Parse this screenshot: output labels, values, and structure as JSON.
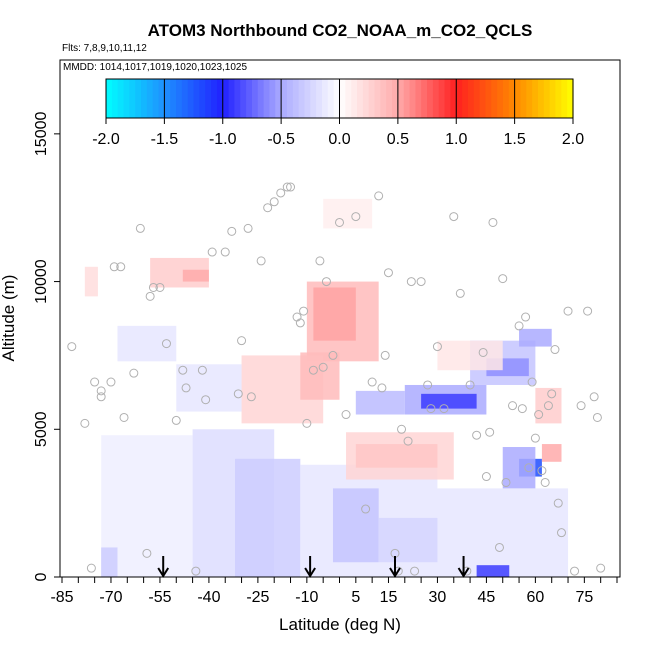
{
  "chart_data": {
    "type": "heatmap",
    "title": "ATOM3 Northbound CO2_NOAA_m_CO2_QCLS",
    "subtitle_flights": "Flts: 7,8,9,10,11,12",
    "subtitle_dates": "MMDD: 1014,1017,1019,1020,1023,1025",
    "xlabel": "Latitude (deg N)",
    "ylabel": "Altitude (m)",
    "xlim": [
      -85,
      85
    ],
    "ylim": [
      0,
      17500
    ],
    "x_tick_labels": [
      "-85",
      "-70",
      "-55",
      "-40",
      "-25",
      "-10",
      "5",
      "15",
      "30",
      "45",
      "60",
      "75"
    ],
    "x_tick_values": [
      -85,
      -70,
      -55,
      -40,
      -25,
      -10,
      5,
      15,
      30,
      45,
      60,
      75
    ],
    "y_tick_labels": [
      "0",
      "5000",
      "10000",
      "15000"
    ],
    "y_tick_values": [
      0,
      5000,
      10000,
      15000
    ],
    "colorbar": {
      "range": [
        -2.0,
        2.0
      ],
      "tick_labels": [
        "-2.0",
        "-1.5",
        "-1.0",
        "-0.5",
        "0.0",
        "0.5",
        "1.0",
        "1.5",
        "2.0"
      ],
      "tick_values": [
        -2.0,
        -1.5,
        -1.0,
        -0.5,
        0.0,
        0.5,
        1.0,
        1.5,
        2.0
      ],
      "stops": [
        {
          "v": -2.0,
          "c": "#00ffff"
        },
        {
          "v": -1.5,
          "c": "#1e90ff"
        },
        {
          "v": -1.0,
          "c": "#2020ff"
        },
        {
          "v": -0.5,
          "c": "#aaaaff"
        },
        {
          "v": 0.0,
          "c": "#ffffff"
        },
        {
          "v": 0.5,
          "c": "#ffaaaa"
        },
        {
          "v": 1.0,
          "c": "#ff2020"
        },
        {
          "v": 1.5,
          "c": "#ff8800"
        },
        {
          "v": 2.0,
          "c": "#ffff00"
        }
      ]
    },
    "cells": [
      {
        "x": [
          -78,
          -74
        ],
        "y": [
          9500,
          10500
        ],
        "v": 0.2
      },
      {
        "x": [
          -73,
          -45
        ],
        "y": [
          0,
          4800
        ],
        "v": -0.1
      },
      {
        "x": [
          -73,
          -68
        ],
        "y": [
          0,
          1000
        ],
        "v": -0.3
      },
      {
        "x": [
          -45,
          -20
        ],
        "y": [
          0,
          5000
        ],
        "v": -0.2
      },
      {
        "x": [
          -32,
          -12
        ],
        "y": [
          0,
          4000
        ],
        "v": -0.3
      },
      {
        "x": [
          -12,
          30
        ],
        "y": [
          0,
          3800
        ],
        "v": -0.15
      },
      {
        "x": [
          -2,
          12
        ],
        "y": [
          500,
          3000
        ],
        "v": -0.35
      },
      {
        "x": [
          12,
          30
        ],
        "y": [
          500,
          2000
        ],
        "v": -0.25
      },
      {
        "x": [
          30,
          70
        ],
        "y": [
          0,
          3000
        ],
        "v": -0.15
      },
      {
        "x": [
          42,
          52
        ],
        "y": [
          0,
          400
        ],
        "v": -0.9
      },
      {
        "x": [
          55,
          62
        ],
        "y": [
          3400,
          4000
        ],
        "v": -1.2
      },
      {
        "x": [
          50,
          60
        ],
        "y": [
          3000,
          4400
        ],
        "v": -0.5
      },
      {
        "x": [
          62,
          68
        ],
        "y": [
          3900,
          4500
        ],
        "v": 0.5
      },
      {
        "x": [
          5,
          30
        ],
        "y": [
          3700,
          4500
        ],
        "v": 0.7
      },
      {
        "x": [
          2,
          35
        ],
        "y": [
          3300,
          4900
        ],
        "v": 0.25
      },
      {
        "x": [
          -8,
          5
        ],
        "y": [
          8000,
          9800
        ],
        "v": 1.0
      },
      {
        "x": [
          -10,
          12
        ],
        "y": [
          7300,
          10000
        ],
        "v": 0.4
      },
      {
        "x": [
          -30,
          -5
        ],
        "y": [
          5200,
          7500
        ],
        "v": 0.25
      },
      {
        "x": [
          -12,
          0
        ],
        "y": [
          6000,
          7600
        ],
        "v": 0.4
      },
      {
        "x": [
          -50,
          -30
        ],
        "y": [
          5600,
          7200
        ],
        "v": -0.15
      },
      {
        "x": [
          -68,
          -50
        ],
        "y": [
          7300,
          8500
        ],
        "v": -0.15
      },
      {
        "x": [
          -58,
          -40
        ],
        "y": [
          9800,
          10800
        ],
        "v": 0.3
      },
      {
        "x": [
          -48,
          -40
        ],
        "y": [
          10000,
          10400
        ],
        "v": 0.5
      },
      {
        "x": [
          5,
          20
        ],
        "y": [
          5500,
          6300
        ],
        "v": -0.4
      },
      {
        "x": [
          20,
          45
        ],
        "y": [
          5500,
          6500
        ],
        "v": -0.5
      },
      {
        "x": [
          25,
          42
        ],
        "y": [
          5700,
          6200
        ],
        "v": -0.9
      },
      {
        "x": [
          40,
          60
        ],
        "y": [
          6500,
          8000
        ],
        "v": -0.35
      },
      {
        "x": [
          45,
          58
        ],
        "y": [
          6800,
          7400
        ],
        "v": -0.6
      },
      {
        "x": [
          55,
          65
        ],
        "y": [
          7800,
          8400
        ],
        "v": -0.5
      },
      {
        "x": [
          -5,
          10
        ],
        "y": [
          11800,
          12800
        ],
        "v": 0.1
      },
      {
        "x": [
          30,
          50
        ],
        "y": [
          7000,
          8000
        ],
        "v": 0.15
      },
      {
        "x": [
          60,
          68
        ],
        "y": [
          5200,
          6400
        ],
        "v": 0.3
      }
    ],
    "points": [
      [
        -82,
        7800
      ],
      [
        -78,
        5200
      ],
      [
        -76,
        300
      ],
      [
        -75,
        6600
      ],
      [
        -73,
        6300
      ],
      [
        -73,
        6100
      ],
      [
        -70,
        6600
      ],
      [
        -69,
        10500
      ],
      [
        -67,
        10500
      ],
      [
        -66,
        5400
      ],
      [
        -63,
        6900
      ],
      [
        -61,
        11800
      ],
      [
        -59,
        800
      ],
      [
        -58,
        9500
      ],
      [
        -57,
        9800
      ],
      [
        -55,
        9800
      ],
      [
        -53,
        7900
      ],
      [
        -50,
        5300
      ],
      [
        -48,
        7000
      ],
      [
        -47,
        6400
      ],
      [
        -44,
        200
      ],
      [
        -42,
        7000
      ],
      [
        -41,
        6000
      ],
      [
        -39,
        11000
      ],
      [
        -35,
        11000
      ],
      [
        -33,
        11700
      ],
      [
        -31,
        6200
      ],
      [
        -30,
        8000
      ],
      [
        -28,
        11800
      ],
      [
        -27,
        6100
      ],
      [
        -24,
        10700
      ],
      [
        -22,
        12500
      ],
      [
        -20,
        12700
      ],
      [
        -18,
        13000
      ],
      [
        -16,
        13200
      ],
      [
        -15,
        13200
      ],
      [
        -13,
        8800
      ],
      [
        -12,
        8600
      ],
      [
        -11,
        9000
      ],
      [
        -10,
        5200
      ],
      [
        -8,
        7000
      ],
      [
        -6,
        10700
      ],
      [
        -5,
        7100
      ],
      [
        -4,
        10000
      ],
      [
        -2,
        7500
      ],
      [
        0,
        12000
      ],
      [
        2,
        5500
      ],
      [
        5,
        12200
      ],
      [
        8,
        2300
      ],
      [
        10,
        6600
      ],
      [
        12,
        12900
      ],
      [
        13,
        6400
      ],
      [
        14,
        7500
      ],
      [
        15,
        10300
      ],
      [
        17,
        800
      ],
      [
        18,
        200
      ],
      [
        19,
        5000
      ],
      [
        21,
        4600
      ],
      [
        22,
        10000
      ],
      [
        23,
        200
      ],
      [
        25,
        10000
      ],
      [
        27,
        6500
      ],
      [
        28,
        5700
      ],
      [
        30,
        7800
      ],
      [
        32,
        5700
      ],
      [
        35,
        12200
      ],
      [
        37,
        9600
      ],
      [
        39,
        200
      ],
      [
        40,
        6500
      ],
      [
        42,
        4800
      ],
      [
        44,
        7600
      ],
      [
        45,
        3400
      ],
      [
        46,
        4900
      ],
      [
        47,
        12000
      ],
      [
        49,
        1000
      ],
      [
        50,
        10100
      ],
      [
        51,
        3200
      ],
      [
        53,
        5800
      ],
      [
        55,
        8500
      ],
      [
        56,
        5700
      ],
      [
        57,
        8800
      ],
      [
        58,
        3700
      ],
      [
        59,
        6600
      ],
      [
        60,
        4700
      ],
      [
        61,
        5500
      ],
      [
        62,
        3600
      ],
      [
        63,
        3200
      ],
      [
        64,
        5800
      ],
      [
        65,
        6200
      ],
      [
        66,
        7700
      ],
      [
        67,
        2500
      ],
      [
        68,
        1500
      ],
      [
        70,
        9000
      ],
      [
        72,
        200
      ],
      [
        74,
        5800
      ],
      [
        76,
        9000
      ],
      [
        78,
        6100
      ],
      [
        79,
        5400
      ],
      [
        80,
        300
      ]
    ],
    "arrows_latitude": [
      -54,
      -9,
      17,
      38
    ]
  }
}
